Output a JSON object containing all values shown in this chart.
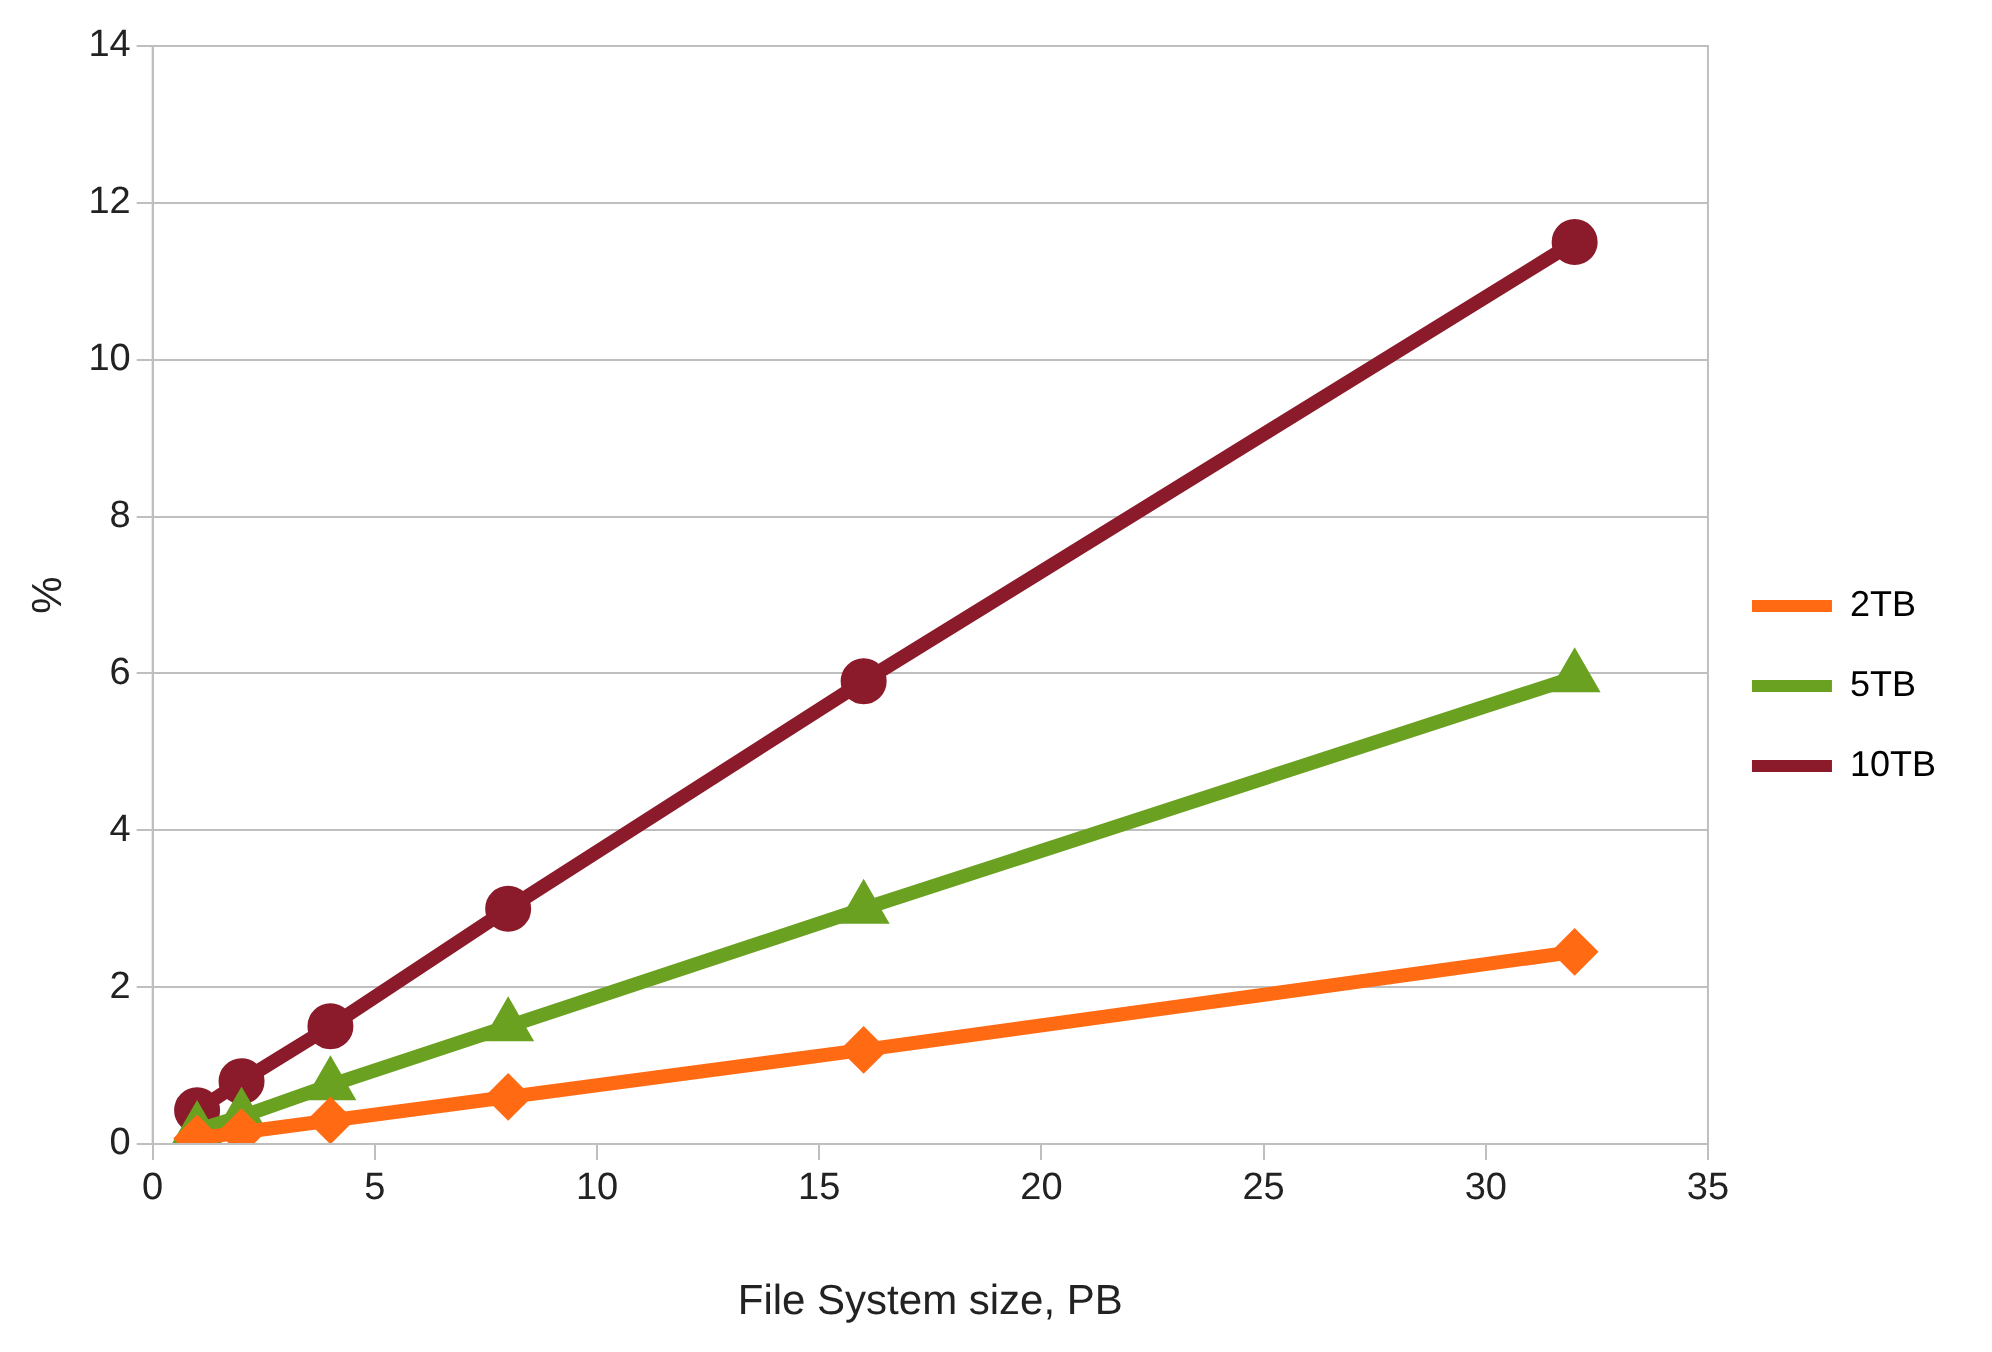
{
  "chart_data": {
    "type": "line",
    "xlabel": "File System size, PB",
    "ylabel": "%",
    "xlim": [
      0,
      35
    ],
    "xticks": [
      0,
      5,
      10,
      15,
      20,
      25,
      30,
      35
    ],
    "ylim": [
      0,
      14
    ],
    "yticks": [
      0,
      2,
      4,
      6,
      8,
      10,
      12,
      14
    ],
    "grid": "y",
    "legend": "right",
    "line_style": "solid",
    "x": [
      1,
      2,
      4,
      8,
      16,
      32
    ],
    "series": [
      {
        "name": "2TB",
        "color": "#ff6a13",
        "marker": "diamond",
        "values": [
          0.07,
          0.15,
          0.3,
          0.6,
          1.2,
          2.45
        ]
      },
      {
        "name": "5TB",
        "color": "#6aa121",
        "marker": "triangle",
        "values": [
          0.18,
          0.35,
          0.75,
          1.5,
          3.0,
          5.95
        ]
      },
      {
        "name": "10TB",
        "color": "#8b1a2a",
        "marker": "circle",
        "values": [
          0.43,
          0.8,
          1.5,
          3.0,
          5.9,
          11.5
        ]
      }
    ]
  }
}
